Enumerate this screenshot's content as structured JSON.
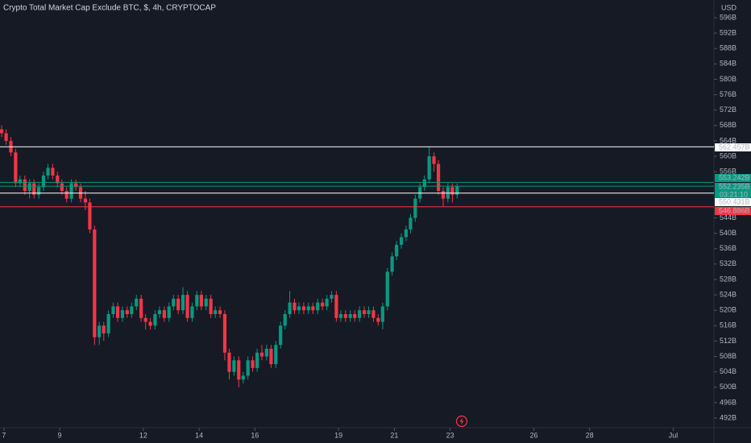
{
  "chart_data": {
    "type": "candlestick",
    "title": "Crypto Total Market Cap Exclude BTC, $, 4h, CRYPTOCAP",
    "currency": "USD",
    "up_color": "#089981",
    "down_color": "#f23645",
    "x": [
      6.92,
      7.08,
      7.25,
      7.42,
      7.58,
      7.75,
      7.92,
      8.08,
      8.25,
      8.42,
      8.58,
      8.75,
      8.92,
      9.08,
      9.25,
      9.42,
      9.58,
      9.75,
      9.92,
      10.08,
      10.25,
      10.42,
      10.58,
      10.75,
      10.92,
      11.08,
      11.25,
      11.42,
      11.58,
      11.75,
      11.92,
      12.08,
      12.25,
      12.42,
      12.58,
      12.75,
      12.92,
      13.08,
      13.25,
      13.42,
      13.58,
      13.75,
      13.92,
      14.08,
      14.25,
      14.42,
      14.58,
      14.75,
      14.92,
      15.08,
      15.25,
      15.42,
      15.58,
      15.75,
      15.92,
      16.08,
      16.25,
      16.42,
      16.58,
      16.75,
      16.92,
      17.08,
      17.25,
      17.42,
      17.58,
      17.75,
      17.92,
      18.08,
      18.25,
      18.42,
      18.58,
      18.75,
      18.92,
      19.08,
      19.25,
      19.42,
      19.58,
      19.75,
      19.92,
      20.08,
      20.25,
      20.42,
      20.58,
      20.75,
      20.92,
      21.08,
      21.25,
      21.42,
      21.58,
      21.75,
      21.92,
      22.08,
      22.25,
      22.42,
      22.58,
      22.75,
      22.92,
      23.08,
      23.25
    ],
    "open": [
      567,
      566,
      564,
      561,
      553,
      554,
      551,
      553,
      550,
      552,
      555,
      557,
      555,
      553,
      551,
      549,
      553,
      552,
      549,
      548,
      541,
      513,
      516,
      514,
      519,
      521,
      518,
      520,
      519,
      521,
      523,
      518,
      517,
      516,
      519,
      520,
      518,
      521,
      523,
      520,
      524,
      518,
      521,
      524,
      521,
      523,
      519,
      520,
      519,
      509,
      504,
      507,
      502,
      503,
      507,
      505,
      509,
      508,
      510,
      506,
      511,
      516,
      519,
      522,
      520,
      521,
      520,
      521,
      520,
      522,
      521,
      523,
      524,
      518,
      519,
      518,
      519,
      518,
      520,
      519,
      520,
      518,
      517,
      521,
      530,
      534,
      537,
      539,
      541,
      544,
      549,
      552,
      554,
      560,
      558,
      551,
      549,
      552,
      550
    ],
    "high": [
      568,
      567,
      565,
      562,
      555,
      555,
      554,
      554,
      553,
      556,
      558,
      558,
      556,
      554,
      552,
      554,
      554,
      553,
      551,
      549,
      542,
      517,
      517,
      520,
      522,
      522,
      521,
      521,
      522,
      524,
      524,
      519,
      518,
      520,
      521,
      521,
      522,
      524,
      524,
      526,
      525,
      522,
      525,
      525,
      524,
      524,
      521,
      521,
      520,
      510,
      508,
      508,
      504,
      508,
      508,
      510,
      511,
      511,
      511,
      512,
      517,
      520,
      525,
      523,
      522,
      522,
      522,
      522,
      523,
      523,
      524,
      525,
      525,
      520,
      520,
      520,
      520,
      521,
      521,
      521,
      521,
      519,
      522,
      531,
      535,
      538,
      540,
      542,
      545,
      550,
      553,
      555,
      562.5,
      561,
      559,
      552,
      553,
      553,
      553
    ],
    "low": [
      565,
      563,
      560,
      552,
      552,
      550,
      549,
      549,
      549,
      551,
      554,
      554,
      552,
      550,
      548,
      548,
      551,
      548,
      546,
      540,
      511,
      511,
      512,
      513,
      518,
      517,
      517,
      518,
      518,
      520,
      517,
      515,
      515,
      515,
      518,
      517,
      517,
      520,
      519,
      519,
      517,
      517,
      520,
      520,
      520,
      518,
      518,
      518,
      507,
      502,
      503,
      500,
      501,
      502,
      504,
      504,
      507,
      507,
      505,
      505,
      510,
      515,
      518,
      519,
      519,
      519,
      519,
      519,
      519,
      520,
      520,
      522,
      517,
      517,
      517,
      517,
      517,
      517,
      518,
      518,
      517,
      516,
      515,
      520,
      529,
      533,
      536,
      538,
      540,
      543,
      548,
      551,
      553,
      556,
      550,
      547,
      548,
      548,
      549
    ],
    "close": [
      566,
      564,
      561,
      553,
      554,
      551,
      553,
      550,
      552,
      555,
      557,
      555,
      553,
      551,
      549,
      553,
      552,
      549,
      548,
      541,
      513,
      516,
      514,
      519,
      521,
      518,
      520,
      519,
      521,
      523,
      518,
      517,
      516,
      519,
      520,
      518,
      521,
      523,
      520,
      524,
      518,
      521,
      524,
      521,
      523,
      519,
      520,
      519,
      509,
      504,
      507,
      502,
      503,
      507,
      505,
      509,
      508,
      510,
      506,
      511,
      516,
      519,
      522,
      520,
      521,
      520,
      521,
      520,
      522,
      521,
      523,
      524,
      518,
      519,
      518,
      519,
      518,
      520,
      519,
      520,
      518,
      517,
      521,
      530,
      534,
      537,
      539,
      541,
      544,
      549,
      552,
      554,
      560,
      558,
      551,
      549,
      552,
      550,
      552.235
    ],
    "xlim": [
      6.86,
      32.43
    ],
    "xticks": [
      7,
      9,
      12,
      14,
      16,
      19,
      21,
      23,
      26,
      28,
      {
        "value": 31,
        "label": "Jul"
      }
    ],
    "ylim": [
      489.7,
      600.6
    ],
    "yticks": [
      {
        "value": 492,
        "label": "492B"
      },
      {
        "value": 496,
        "label": "496B"
      },
      {
        "value": 500,
        "label": "500B"
      },
      {
        "value": 504,
        "label": "504B"
      },
      {
        "value": 508,
        "label": "508B"
      },
      {
        "value": 512,
        "label": "512B"
      },
      {
        "value": 516,
        "label": "516B"
      },
      {
        "value": 520,
        "label": "520B"
      },
      {
        "value": 524,
        "label": "524B"
      },
      {
        "value": 528,
        "label": "528B"
      },
      {
        "value": 532,
        "label": "532B"
      },
      {
        "value": 536,
        "label": "536B"
      },
      {
        "value": 540,
        "label": "540B"
      },
      {
        "value": 544,
        "label": "544B"
      },
      {
        "value": 556,
        "label": "556B"
      },
      {
        "value": 560,
        "label": "560B"
      },
      {
        "value": 564,
        "label": "564B"
      },
      {
        "value": 568,
        "label": "568B"
      },
      {
        "value": 572,
        "label": "572B"
      },
      {
        "value": 576,
        "label": "576B"
      },
      {
        "value": 580,
        "label": "580B"
      },
      {
        "value": 584,
        "label": "584B"
      },
      {
        "value": 588,
        "label": "588B"
      },
      {
        "value": 592,
        "label": "592B"
      },
      {
        "value": 596,
        "label": "596B"
      }
    ],
    "levels": [
      {
        "value": 562.457,
        "label": "562.457B",
        "color": "#ffffff"
      },
      {
        "value": 553.242,
        "label": "553.242B",
        "color": "#089981"
      },
      {
        "value": 552.235,
        "label": "552.235B",
        "color": "#089981",
        "countdown": "03:21:10"
      },
      {
        "value": 550.431,
        "label": "550.431B",
        "color": "#ffffff"
      },
      {
        "value": 546.886,
        "label": "546.886B",
        "color": "#f23645"
      }
    ]
  }
}
